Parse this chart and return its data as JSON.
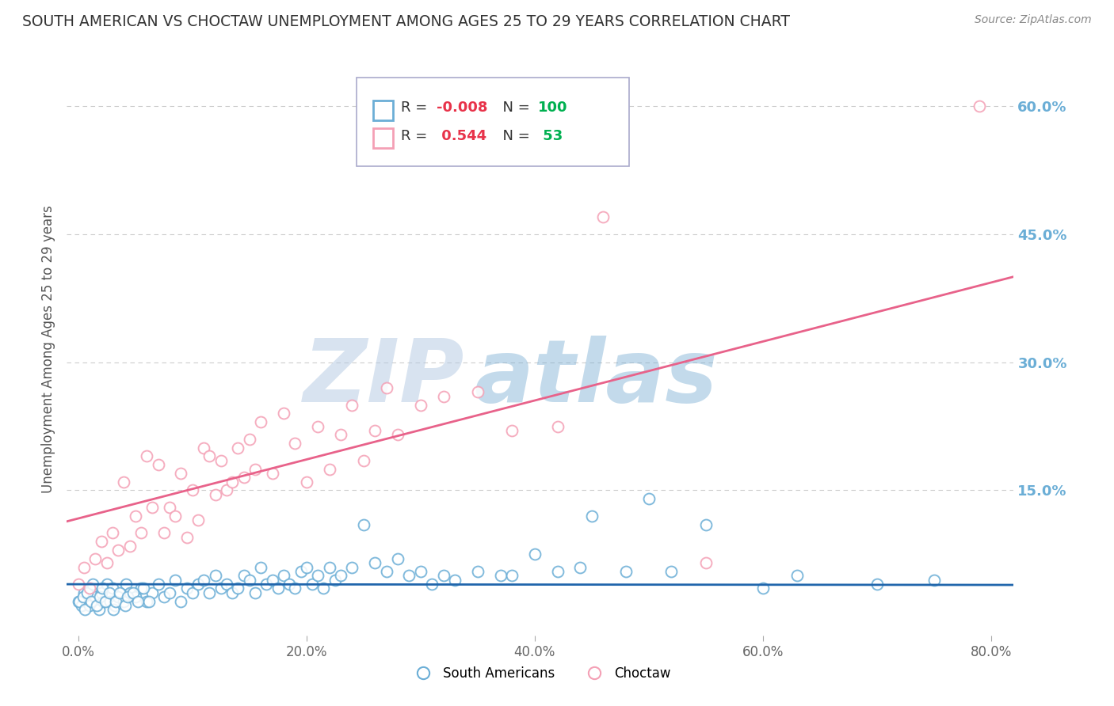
{
  "title": "SOUTH AMERICAN VS CHOCTAW UNEMPLOYMENT AMONG AGES 25 TO 29 YEARS CORRELATION CHART",
  "source": "Source: ZipAtlas.com",
  "ylabel": "Unemployment Among Ages 25 to 29 years",
  "xlabel_ticks": [
    "0.0%",
    "20.0%",
    "40.0%",
    "60.0%",
    "80.0%"
  ],
  "xlabel_vals": [
    0.0,
    20.0,
    40.0,
    60.0,
    80.0
  ],
  "ylabel_ticks": [
    "15.0%",
    "30.0%",
    "45.0%",
    "60.0%"
  ],
  "ylabel_vals": [
    15.0,
    30.0,
    45.0,
    60.0
  ],
  "xmin": -1.0,
  "xmax": 82.0,
  "ymin": -2.0,
  "ymax": 65.0,
  "south_american_color": "#6baed6",
  "choctaw_color": "#f4a0b5",
  "trend_sa_color": "#2166ac",
  "trend_ch_color": "#e8628a",
  "south_american_R": -0.008,
  "south_american_N": 100,
  "choctaw_R": 0.544,
  "choctaw_N": 53,
  "legend_R_color": "#e8334a",
  "legend_N_color": "#00b050",
  "watermark_zip": "ZIP",
  "watermark_atlas": "atlas",
  "watermark_color_zip": "#aac4e8",
  "watermark_color_atlas": "#7da8d8",
  "grid_color": "#cccccc",
  "sa_x": [
    0.0,
    0.3,
    0.5,
    0.7,
    1.0,
    1.2,
    1.5,
    1.8,
    2.0,
    2.2,
    2.5,
    2.8,
    3.0,
    3.2,
    3.5,
    4.0,
    4.2,
    4.5,
    5.0,
    5.5,
    6.0,
    6.5,
    7.0,
    7.5,
    8.0,
    8.5,
    9.0,
    9.5,
    10.0,
    10.5,
    11.0,
    11.5,
    12.0,
    12.5,
    13.0,
    13.5,
    14.0,
    14.5,
    15.0,
    15.5,
    16.0,
    16.5,
    17.0,
    17.5,
    18.0,
    18.5,
    19.0,
    19.5,
    20.0,
    20.5,
    21.0,
    21.5,
    22.0,
    22.5,
    23.0,
    24.0,
    25.0,
    26.0,
    27.0,
    28.0,
    29.0,
    30.0,
    31.0,
    32.0,
    33.0,
    35.0,
    37.0,
    38.0,
    40.0,
    42.0,
    44.0,
    45.0,
    48.0,
    50.0,
    52.0,
    55.0,
    60.0,
    63.0,
    70.0,
    75.0,
    0.1,
    0.4,
    0.6,
    0.8,
    1.1,
    1.3,
    1.6,
    1.9,
    2.1,
    2.4,
    2.7,
    3.1,
    3.3,
    3.6,
    4.1,
    4.3,
    4.8,
    5.2,
    5.7,
    6.2
  ],
  "sa_y": [
    2.0,
    1.5,
    3.0,
    2.0,
    1.5,
    3.5,
    2.5,
    1.0,
    3.0,
    2.0,
    4.0,
    2.0,
    3.5,
    1.5,
    2.5,
    2.0,
    4.0,
    3.0,
    2.5,
    3.5,
    2.0,
    3.0,
    4.0,
    2.5,
    3.0,
    4.5,
    2.0,
    3.5,
    3.0,
    4.0,
    4.5,
    3.0,
    5.0,
    3.5,
    4.0,
    3.0,
    3.5,
    5.0,
    4.5,
    3.0,
    6.0,
    4.0,
    4.5,
    3.5,
    5.0,
    4.0,
    3.5,
    5.5,
    6.0,
    4.0,
    5.0,
    3.5,
    6.0,
    4.5,
    5.0,
    6.0,
    11.0,
    6.5,
    5.5,
    7.0,
    5.0,
    5.5,
    4.0,
    5.0,
    4.5,
    5.5,
    5.0,
    5.0,
    7.5,
    5.5,
    6.0,
    12.0,
    5.5,
    14.0,
    5.5,
    11.0,
    3.5,
    5.0,
    4.0,
    4.5,
    2.0,
    2.5,
    1.0,
    3.0,
    2.0,
    4.0,
    1.5,
    2.5,
    3.5,
    2.0,
    3.0,
    1.0,
    2.0,
    3.0,
    1.5,
    2.5,
    3.0,
    2.0,
    3.5,
    2.0
  ],
  "ch_x": [
    0.0,
    0.5,
    1.0,
    1.5,
    2.0,
    2.5,
    3.0,
    3.5,
    4.0,
    4.5,
    5.0,
    5.5,
    6.0,
    6.5,
    7.0,
    7.5,
    8.0,
    8.5,
    9.0,
    9.5,
    10.0,
    10.5,
    11.0,
    11.5,
    12.0,
    12.5,
    13.0,
    13.5,
    14.0,
    14.5,
    15.0,
    15.5,
    16.0,
    17.0,
    18.0,
    19.0,
    20.0,
    21.0,
    22.0,
    23.0,
    24.0,
    25.0,
    26.0,
    27.0,
    28.0,
    30.0,
    32.0,
    35.0,
    38.0,
    42.0,
    46.0,
    55.0,
    79.0
  ],
  "ch_y": [
    4.0,
    6.0,
    3.5,
    7.0,
    9.0,
    6.5,
    10.0,
    8.0,
    16.0,
    8.5,
    12.0,
    10.0,
    19.0,
    13.0,
    18.0,
    10.0,
    13.0,
    12.0,
    17.0,
    9.5,
    15.0,
    11.5,
    20.0,
    19.0,
    14.5,
    18.5,
    15.0,
    16.0,
    20.0,
    16.5,
    21.0,
    17.5,
    23.0,
    17.0,
    24.0,
    20.5,
    16.0,
    22.5,
    17.5,
    21.5,
    25.0,
    18.5,
    22.0,
    27.0,
    21.5,
    25.0,
    26.0,
    26.5,
    22.0,
    22.5,
    47.0,
    6.5,
    60.0
  ]
}
